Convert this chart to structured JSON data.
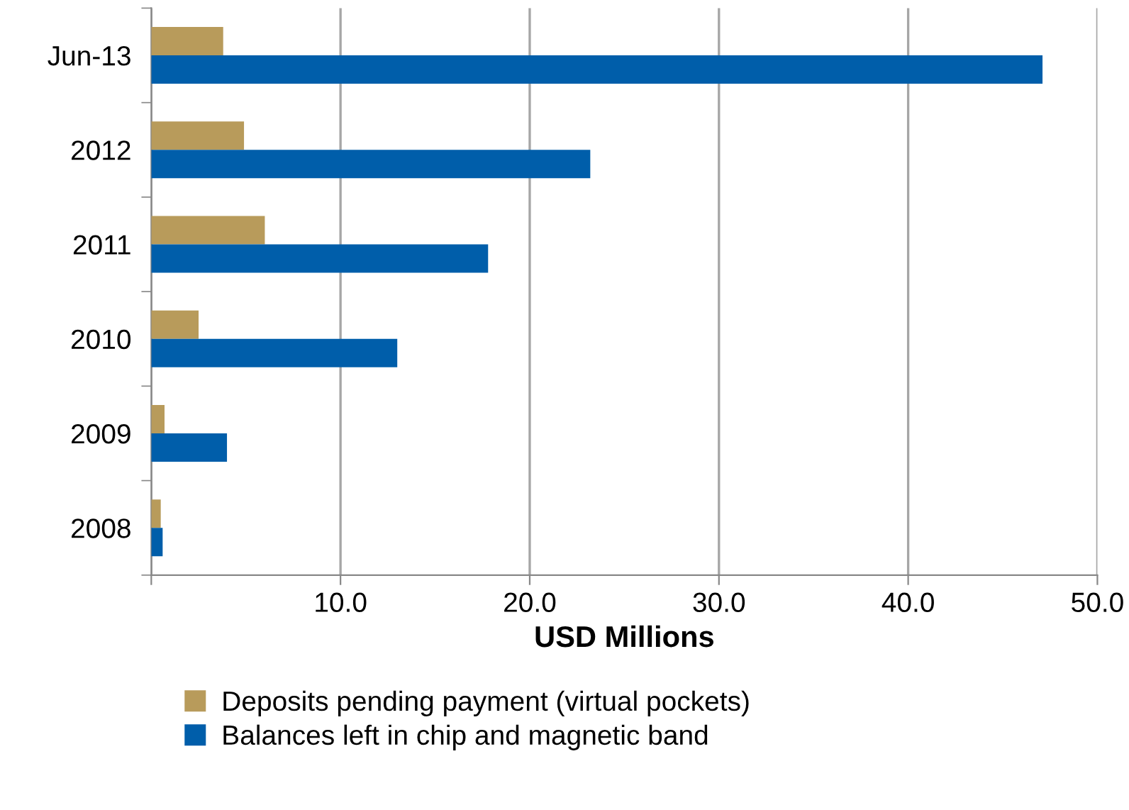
{
  "chart_data": {
    "type": "bar",
    "orientation": "horizontal",
    "xlabel": "USD Millions",
    "categories": [
      "Jun-13",
      "2012",
      "2011",
      "2010",
      "2009",
      "2008"
    ],
    "series": [
      {
        "name": "Deposits pending payment (virtual pockets)",
        "color": "#b89b5b",
        "values": [
          3.8,
          4.9,
          6.0,
          2.5,
          0.7,
          0.5
        ]
      },
      {
        "name": "Balances left in chip and magnetic band",
        "color": "#005eaa",
        "values": [
          47.1,
          23.2,
          17.8,
          13.0,
          4.0,
          0.6
        ]
      }
    ],
    "xlim": [
      0,
      50
    ],
    "xticks": [
      {
        "value": 0,
        "label": null
      },
      {
        "value": 10,
        "label": "10.0"
      },
      {
        "value": 20,
        "label": "20.0"
      },
      {
        "value": 30,
        "label": "30.0"
      },
      {
        "value": 40,
        "label": "40.0"
      },
      {
        "value": 50,
        "label": "50.0"
      }
    ],
    "grid": "x",
    "legend": "bottom"
  }
}
